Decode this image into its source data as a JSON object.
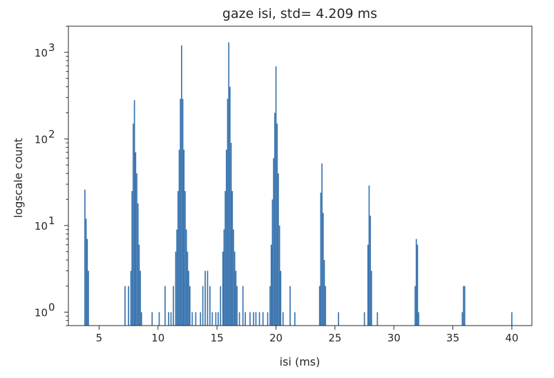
{
  "chart_data": {
    "type": "bar",
    "title": "gaze isi, std= 4.209 ms",
    "xlabel": "isi (ms)",
    "ylabel": "logscale count",
    "xscale": "linear",
    "yscale": "log",
    "xlim": [
      2.4,
      41.7
    ],
    "ylim": [
      0.7,
      2000
    ],
    "grid": false,
    "legend": "none",
    "bar_color": "#3b75af",
    "bin_width": 0.1,
    "xticks": [
      5,
      10,
      15,
      20,
      25,
      30,
      35,
      40
    ],
    "yticks": [
      {
        "value": 1,
        "base": "10",
        "exp": "0"
      },
      {
        "value": 10,
        "base": "10",
        "exp": "1"
      },
      {
        "value": 100,
        "base": "10",
        "exp": "2"
      },
      {
        "value": 1000,
        "base": "10",
        "exp": "3"
      }
    ],
    "bins": [
      {
        "x": 3.8,
        "count": 26
      },
      {
        "x": 3.9,
        "count": 12
      },
      {
        "x": 4.0,
        "count": 7
      },
      {
        "x": 4.1,
        "count": 3
      },
      {
        "x": 7.2,
        "count": 2
      },
      {
        "x": 7.5,
        "count": 2
      },
      {
        "x": 7.7,
        "count": 3
      },
      {
        "x": 7.8,
        "count": 25
      },
      {
        "x": 7.9,
        "count": 150
      },
      {
        "x": 8.0,
        "count": 280
      },
      {
        "x": 8.1,
        "count": 70
      },
      {
        "x": 8.2,
        "count": 40
      },
      {
        "x": 8.3,
        "count": 18
      },
      {
        "x": 8.4,
        "count": 6
      },
      {
        "x": 8.5,
        "count": 3
      },
      {
        "x": 8.6,
        "count": 1
      },
      {
        "x": 9.5,
        "count": 1
      },
      {
        "x": 10.1,
        "count": 1
      },
      {
        "x": 10.6,
        "count": 2
      },
      {
        "x": 10.9,
        "count": 1
      },
      {
        "x": 11.1,
        "count": 1
      },
      {
        "x": 11.3,
        "count": 2
      },
      {
        "x": 11.5,
        "count": 5
      },
      {
        "x": 11.6,
        "count": 9
      },
      {
        "x": 11.7,
        "count": 25
      },
      {
        "x": 11.8,
        "count": 75
      },
      {
        "x": 11.9,
        "count": 290
      },
      {
        "x": 12.0,
        "count": 1200
      },
      {
        "x": 12.1,
        "count": 290
      },
      {
        "x": 12.2,
        "count": 75
      },
      {
        "x": 12.3,
        "count": 25
      },
      {
        "x": 12.4,
        "count": 9
      },
      {
        "x": 12.5,
        "count": 5
      },
      {
        "x": 12.6,
        "count": 3
      },
      {
        "x": 12.7,
        "count": 2
      },
      {
        "x": 12.9,
        "count": 1
      },
      {
        "x": 13.2,
        "count": 1
      },
      {
        "x": 13.6,
        "count": 1
      },
      {
        "x": 13.8,
        "count": 2
      },
      {
        "x": 14.0,
        "count": 3
      },
      {
        "x": 14.2,
        "count": 3
      },
      {
        "x": 14.4,
        "count": 2
      },
      {
        "x": 14.6,
        "count": 1
      },
      {
        "x": 14.9,
        "count": 1
      },
      {
        "x": 15.1,
        "count": 1
      },
      {
        "x": 15.3,
        "count": 2
      },
      {
        "x": 15.5,
        "count": 5
      },
      {
        "x": 15.6,
        "count": 9
      },
      {
        "x": 15.7,
        "count": 25
      },
      {
        "x": 15.8,
        "count": 75
      },
      {
        "x": 15.9,
        "count": 290
      },
      {
        "x": 16.0,
        "count": 1300
      },
      {
        "x": 16.1,
        "count": 400
      },
      {
        "x": 16.2,
        "count": 90
      },
      {
        "x": 16.3,
        "count": 25
      },
      {
        "x": 16.4,
        "count": 9
      },
      {
        "x": 16.5,
        "count": 5
      },
      {
        "x": 16.6,
        "count": 3
      },
      {
        "x": 16.7,
        "count": 2
      },
      {
        "x": 16.9,
        "count": 1
      },
      {
        "x": 17.2,
        "count": 2
      },
      {
        "x": 17.4,
        "count": 1
      },
      {
        "x": 17.8,
        "count": 1
      },
      {
        "x": 18.1,
        "count": 1
      },
      {
        "x": 18.3,
        "count": 1
      },
      {
        "x": 18.6,
        "count": 1
      },
      {
        "x": 18.9,
        "count": 1
      },
      {
        "x": 19.3,
        "count": 1
      },
      {
        "x": 19.5,
        "count": 2
      },
      {
        "x": 19.6,
        "count": 6
      },
      {
        "x": 19.7,
        "count": 20
      },
      {
        "x": 19.8,
        "count": 60
      },
      {
        "x": 19.9,
        "count": 200
      },
      {
        "x": 20.0,
        "count": 690
      },
      {
        "x": 20.1,
        "count": 150
      },
      {
        "x": 20.2,
        "count": 40
      },
      {
        "x": 20.3,
        "count": 10
      },
      {
        "x": 20.4,
        "count": 3
      },
      {
        "x": 20.6,
        "count": 1
      },
      {
        "x": 21.2,
        "count": 2
      },
      {
        "x": 21.6,
        "count": 1
      },
      {
        "x": 23.7,
        "count": 2
      },
      {
        "x": 23.8,
        "count": 24
      },
      {
        "x": 23.9,
        "count": 52
      },
      {
        "x": 24.0,
        "count": 14
      },
      {
        "x": 24.1,
        "count": 4
      },
      {
        "x": 24.2,
        "count": 2
      },
      {
        "x": 25.3,
        "count": 1
      },
      {
        "x": 27.5,
        "count": 1
      },
      {
        "x": 27.8,
        "count": 6
      },
      {
        "x": 27.9,
        "count": 29
      },
      {
        "x": 28.0,
        "count": 13
      },
      {
        "x": 28.1,
        "count": 3
      },
      {
        "x": 28.6,
        "count": 1
      },
      {
        "x": 31.8,
        "count": 2
      },
      {
        "x": 31.9,
        "count": 7
      },
      {
        "x": 32.0,
        "count": 6
      },
      {
        "x": 32.1,
        "count": 1
      },
      {
        "x": 35.8,
        "count": 1
      },
      {
        "x": 35.9,
        "count": 2
      },
      {
        "x": 36.0,
        "count": 2
      },
      {
        "x": 40.0,
        "count": 1
      }
    ]
  }
}
